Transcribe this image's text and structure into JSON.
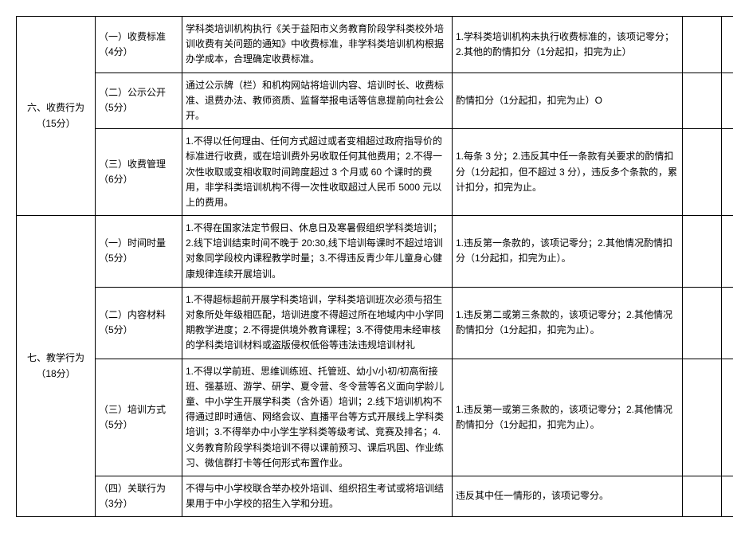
{
  "sections": [
    {
      "category": "六、收费行为（15分）",
      "rows": [
        {
          "sub": "（一）收费标准（4分）",
          "content": "学科类培训机构执行《关于益阳市义务教育阶段学科类校外培训收费有关问题的通知》中收费标准，非学科类培训机构根据办学成本，合理确定收费标准。",
          "scoring": "1.学科类培训机构未执行收费标准的，该项记零分；2.其他的酌情扣分（1分起扣，扣完为止）"
        },
        {
          "sub": "（二）公示公开（5分）",
          "content": "通过公示牌（栏）和机构网站将培训内容、培训时长、收费标准、退费办法、教师资质、监督举报电话等信息提前向社会公开。",
          "scoring": "酌情扣分（1分起扣，扣完为止）O"
        },
        {
          "sub": "（三）收费管理（6分）",
          "content": "1.不得以任何理由、任何方式超过或者变相超过政府指导价的标准进行收费，或在培训费外另收取任何其他费用；2.不得一次性收取或变相收取时间跨度超过 3 个月或 60 个课时的费用，非学科类培训机构不得一次性收取超过人民币 5000 元以上的费用。",
          "scoring": "1.每条 3 分；2.违反其中任一条款有关要求的酌情扣分（1分起扣，但不超过 3 分），违反多个条款的，累计扣分，扣完为止。"
        }
      ]
    },
    {
      "category": "七、教学行为（18分）",
      "rows": [
        {
          "sub": "（一）时间时量（5分）",
          "content": "1.不得在国家法定节假日、休息日及寒暑假组织学科类培训；2.线下培训结束时间不晚于 20:30,线下培训每课时不超过培训对象同学段校内课程教学时量；3.不得违反青少年儿童身心健康规律连续开展培训。",
          "scoring": "1.违反第一条款的，该项记零分；2.其他情况酌情扣分（1分起扣，扣完为止）。"
        },
        {
          "sub": "（二）内容材料（5分）",
          "content": "1.不得超标超前开展学科类培训，学科类培训班次必须与招生对象所处年级相匹配，培训进度不得超过所在地域内中小学同期教学进度；2.不得提供境外教育课程；3.不得使用未经审核的学科类培训材料或盗版侵权低俗等违法违规培训材礼",
          "scoring": "1.违反第二或第三条款的，该项记零分；2.其他情况酌情扣分（1分起扣，扣完为止）。"
        },
        {
          "sub": "（三）培训方式（5分）",
          "content": "1.不得以学前班、思维训练班、托管班、幼小/小初/初高衔接班、强基班、游学、研学、夏令营、冬令营等名义面向学龄儿童、中小学生开展学科类（含外语）培训；2.线下培训机构不得通过即时通信、网络会议、直播平台等方式开展线上学科类培训；3.不得举办中小学生学科类等级考试、竞赛及排名；4.义务教育阶段学科类培训不得以课前预习、课后巩固、作业练习、微信群打卡等任何形式布置作业。",
          "scoring": "1.违反第一或第三条款的，该项记零分；2.其他情况酌情扣分（1分起扣，扣完为止）。"
        },
        {
          "sub": "（四）关联行为（3分）",
          "content": "不得与中小学校联合举办校外培训、组织招生考试或将培训结果用于中小学校的招生入学和分班。",
          "scoring": "违反其中任一情形的，该项记零分。"
        }
      ]
    }
  ]
}
